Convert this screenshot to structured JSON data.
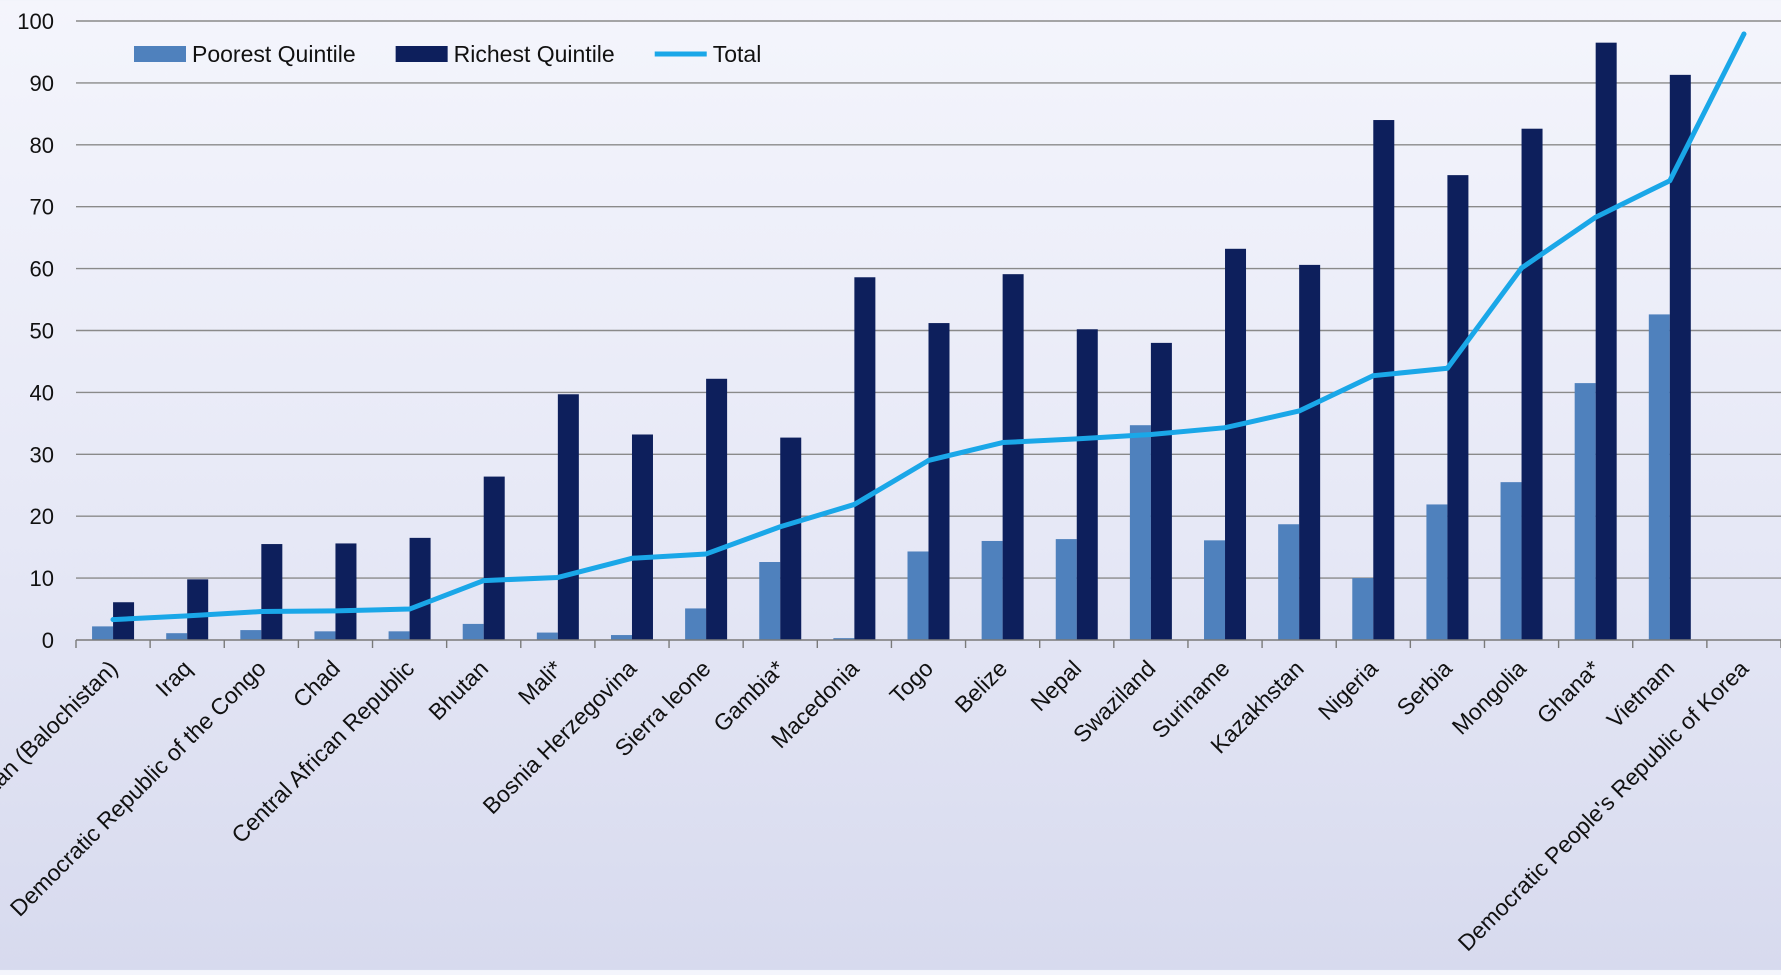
{
  "chart_data": {
    "type": "bar",
    "title": "",
    "xlabel": "",
    "ylabel": "",
    "ylim": [
      0,
      100
    ],
    "yticks": [
      0,
      10,
      20,
      30,
      40,
      50,
      60,
      70,
      80,
      90,
      100
    ],
    "grid": true,
    "legend_position": "top-left",
    "categories": [
      "Pakistan (Balochistan)",
      "Iraq",
      "Democratic Republic of the Congo",
      "Chad",
      "Central African Republic",
      "Bhutan",
      "Mali*",
      "Bosnia Herzegovina",
      "Sierra leone",
      "Gambia*",
      "Macedonia",
      "Togo",
      "Belize",
      "Nepal",
      "Swaziland",
      "Suriname",
      "Kazakhstan",
      "Nigeria",
      "Serbia",
      "Mongolia",
      "Ghana*",
      "Vietnam",
      "Democratic People's Republic of Korea"
    ],
    "series": [
      {
        "name": "Poorest Quintile",
        "type": "bar",
        "color": "#4f81bd",
        "values": [
          2.2,
          1.1,
          1.6,
          1.4,
          1.4,
          2.6,
          1.2,
          0.8,
          5.1,
          12.6,
          0.3,
          14.3,
          16.0,
          16.3,
          34.7,
          16.1,
          18.7,
          10.0,
          21.9,
          25.5,
          41.5,
          52.6,
          null
        ]
      },
      {
        "name": "Richest Quintile",
        "type": "bar",
        "color": "#0d1f5c",
        "values": [
          6.1,
          9.8,
          15.5,
          15.6,
          16.5,
          26.4,
          39.7,
          33.2,
          42.2,
          32.7,
          58.6,
          51.2,
          59.1,
          50.2,
          48.0,
          63.2,
          60.6,
          84.0,
          75.1,
          82.6,
          96.5,
          91.3,
          null
        ]
      },
      {
        "name": "Total",
        "type": "line",
        "color": "#1aa7e8",
        "values": [
          3.3,
          3.9,
          4.6,
          4.7,
          5.0,
          9.6,
          10.1,
          13.2,
          13.9,
          18.3,
          21.9,
          29.0,
          31.9,
          32.5,
          33.2,
          34.3,
          37.0,
          42.7,
          43.9,
          60.1,
          68.3,
          74.2,
          97.9
        ]
      }
    ]
  }
}
